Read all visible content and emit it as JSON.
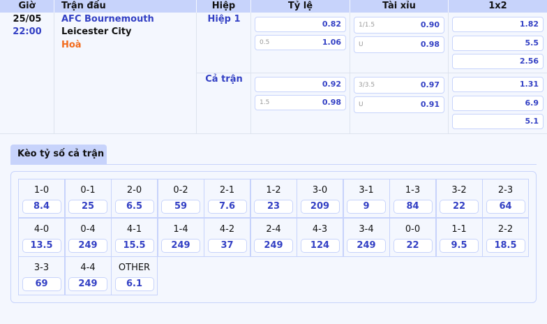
{
  "header": {
    "time": "Giờ",
    "match": "Trận đấu",
    "half": "Hiệp",
    "handicap": "Tỷ lệ",
    "overunder": "Tài xỉu",
    "x12": "1x2"
  },
  "match": {
    "date": "25/05",
    "time": "22:00",
    "home": "AFC Bournemouth",
    "away": "Leicester City",
    "draw": "Hoà"
  },
  "periods": [
    {
      "name": "Hiệp 1",
      "handicap": [
        {
          "line": "",
          "odds": "0.82"
        },
        {
          "line": "0.5",
          "odds": "1.06"
        }
      ],
      "overunder": [
        {
          "line": "1/1.5",
          "odds": "0.90"
        },
        {
          "line": "U",
          "odds": "0.98"
        }
      ],
      "x12": [
        "1.82",
        "5.5",
        "2.56"
      ]
    },
    {
      "name": "Cả trận",
      "handicap": [
        {
          "line": "",
          "odds": "0.92"
        },
        {
          "line": "1.5",
          "odds": "0.98"
        }
      ],
      "overunder": [
        {
          "line": "3/3.5",
          "odds": "0.97"
        },
        {
          "line": "U",
          "odds": "0.91"
        }
      ],
      "x12": [
        "1.31",
        "6.9",
        "5.1"
      ]
    }
  ],
  "correct_score": {
    "tab": "Kèo tỷ số cả trận",
    "items": [
      {
        "score": "1-0",
        "odds": "8.4"
      },
      {
        "score": "0-1",
        "odds": "25"
      },
      {
        "score": "2-0",
        "odds": "6.5"
      },
      {
        "score": "0-2",
        "odds": "59"
      },
      {
        "score": "2-1",
        "odds": "7.6"
      },
      {
        "score": "1-2",
        "odds": "23"
      },
      {
        "score": "3-0",
        "odds": "209"
      },
      {
        "score": "3-1",
        "odds": "9"
      },
      {
        "score": "1-3",
        "odds": "84"
      },
      {
        "score": "3-2",
        "odds": "22"
      },
      {
        "score": "2-3",
        "odds": "64"
      },
      {
        "score": "4-0",
        "odds": "13.5"
      },
      {
        "score": "0-4",
        "odds": "249"
      },
      {
        "score": "4-1",
        "odds": "15.5"
      },
      {
        "score": "1-4",
        "odds": "249"
      },
      {
        "score": "4-2",
        "odds": "37"
      },
      {
        "score": "2-4",
        "odds": "249"
      },
      {
        "score": "4-3",
        "odds": "124"
      },
      {
        "score": "3-4",
        "odds": "249"
      },
      {
        "score": "0-0",
        "odds": "22"
      },
      {
        "score": "1-1",
        "odds": "9.5"
      },
      {
        "score": "2-2",
        "odds": "18.5"
      },
      {
        "score": "3-3",
        "odds": "69"
      },
      {
        "score": "4-4",
        "odds": "249"
      },
      {
        "score": "OTHER",
        "odds": "6.1"
      }
    ]
  }
}
